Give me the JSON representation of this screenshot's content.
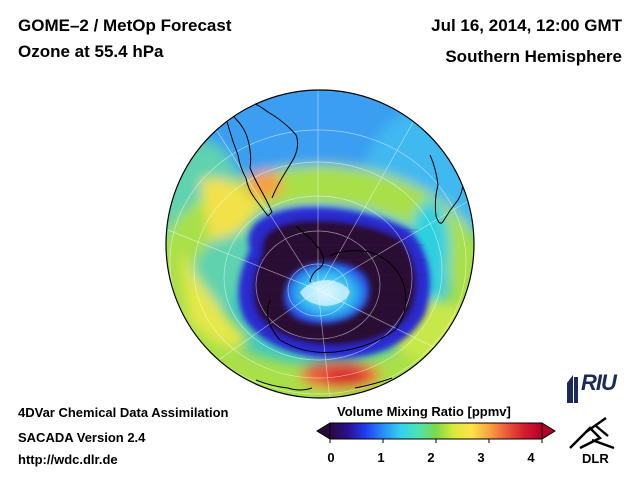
{
  "header": {
    "title_line1": "GOME–2 / MetOp Forecast",
    "title_line2": "Ozone at 55.4 hPa",
    "date": "Jul 16, 2014, 12:00 GMT",
    "region": "Southern Hemisphere"
  },
  "footer": {
    "line1": "4DVar Chemical Data Assimilation",
    "line2": "SACADA Version 2.4",
    "line3": "http://wdc.dlr.de"
  },
  "colorbar": {
    "label": "Volume Mixing Ratio [ppmv]",
    "min": 0,
    "max": 4,
    "ticks": [
      "0",
      "1",
      "2",
      "3",
      "4"
    ],
    "colors": [
      "#2a0a3c",
      "#2c0f8e",
      "#1f3df0",
      "#2a8cf5",
      "#34d0f0",
      "#4fe3b0",
      "#7bd84a",
      "#d8ea3a",
      "#ffe24a",
      "#f7a440",
      "#ec5a3a",
      "#d31d2b",
      "#b5002a"
    ]
  },
  "map": {
    "projection": "orthographic-south-polar",
    "ozone_hole": true,
    "colors": {
      "hole_core": "#2b0930",
      "hole_edge": "#2a1a9a",
      "center_cyan": "#4cd2f0",
      "land": "#000000"
    }
  },
  "logos": {
    "riu": "RIU",
    "dlr": "DLR"
  }
}
